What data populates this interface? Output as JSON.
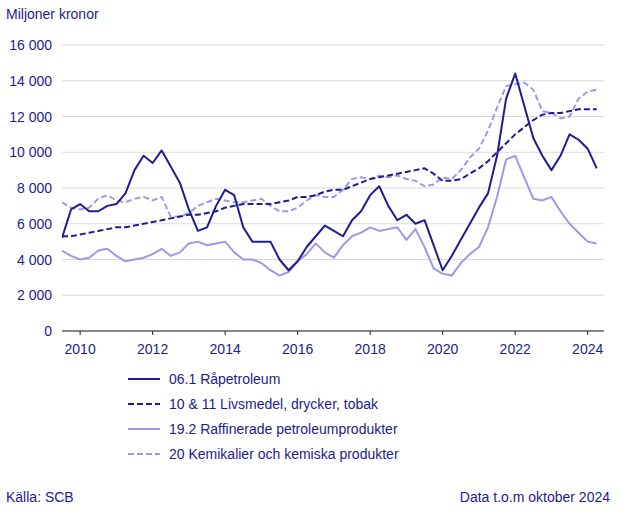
{
  "chart_data": {
    "type": "line",
    "y_label": "Miljoner kronor",
    "source": "Källa: SCB",
    "note": "Data t.o.m oktober 2024",
    "grid": true,
    "legend": "bottom",
    "xlim": [
      2010,
      2024.95
    ],
    "xticks": [
      {
        "value": 2010.5,
        "label": "2010"
      },
      {
        "value": 2012.5,
        "label": "2012"
      },
      {
        "value": 2014.5,
        "label": "2014"
      },
      {
        "value": 2016.5,
        "label": "2016"
      },
      {
        "value": 2018.5,
        "label": "2018"
      },
      {
        "value": 2020.5,
        "label": "2020"
      },
      {
        "value": 2022.5,
        "label": "2022"
      },
      {
        "value": 2024.5,
        "label": "2024"
      }
    ],
    "ylim": [
      0,
      16000
    ],
    "yticks": [
      0,
      {
        "value": 2000,
        "label": "2 000"
      },
      {
        "value": 4000,
        "label": "4 000"
      },
      {
        "value": 6000,
        "label": "6 000"
      },
      {
        "value": 8000,
        "label": "8 000"
      },
      {
        "value": 10000,
        "label": "10 000"
      },
      {
        "value": 12000,
        "label": "12 000"
      },
      {
        "value": 14000,
        "label": "14 000"
      },
      {
        "value": 16000,
        "label": "16 000"
      }
    ],
    "x": [
      2010,
      2010.25,
      2010.5,
      2010.75,
      2011,
      2011.25,
      2011.5,
      2011.75,
      2012,
      2012.25,
      2012.5,
      2012.75,
      2013,
      2013.25,
      2013.5,
      2013.75,
      2014,
      2014.25,
      2014.5,
      2014.75,
      2015,
      2015.25,
      2015.5,
      2015.75,
      2016,
      2016.25,
      2016.5,
      2016.75,
      2017,
      2017.25,
      2017.5,
      2017.75,
      2018,
      2018.25,
      2018.5,
      2018.75,
      2019,
      2019.25,
      2019.5,
      2019.75,
      2020,
      2020.25,
      2020.5,
      2020.75,
      2021,
      2021.25,
      2021.5,
      2021.75,
      2022,
      2022.25,
      2022.5,
      2022.75,
      2023,
      2023.25,
      2023.5,
      2023.75,
      2024,
      2024.25,
      2024.5,
      2024.75
    ],
    "series": [
      {
        "name": "06.1 Råpetroleum",
        "color": "#1f1b96",
        "line_style": "solid",
        "values": [
          5200,
          6800,
          7100,
          6700,
          6700,
          7000,
          7100,
          7700,
          9000,
          9800,
          9400,
          10100,
          9200,
          8300,
          6800,
          5600,
          5800,
          7000,
          7900,
          7600,
          5800,
          5000,
          5000,
          5000,
          4000,
          3400,
          3900,
          4700,
          5300,
          5900,
          5600,
          5300,
          6200,
          6700,
          7600,
          8100,
          7000,
          6200,
          6500,
          6000,
          6200,
          4800,
          3400,
          4200,
          5100,
          6000,
          6900,
          7700,
          9800,
          13000,
          14400,
          12600,
          10800,
          9800,
          9000,
          9800,
          11000,
          10700,
          10200,
          9100
        ]
      },
      {
        "name": "10 & 11 Livsmedel, drycker, tobak",
        "color": "#1f1b96",
        "line_style": "dashed",
        "values": [
          5300,
          5300,
          5400,
          5500,
          5600,
          5700,
          5800,
          5800,
          5900,
          6000,
          6100,
          6200,
          6300,
          6400,
          6500,
          6500,
          6600,
          6700,
          6900,
          7000,
          7100,
          7100,
          7100,
          7100,
          7200,
          7300,
          7500,
          7500,
          7600,
          7800,
          7900,
          7900,
          8100,
          8300,
          8500,
          8600,
          8700,
          8800,
          8900,
          9000,
          9100,
          8800,
          8400,
          8400,
          8500,
          8800,
          9100,
          9500,
          10000,
          10500,
          11000,
          11400,
          11800,
          12100,
          12200,
          12200,
          12300,
          12400,
          12400,
          12400
        ]
      },
      {
        "name": "19.2 Raffinerade petroleumprodukter",
        "color": "#9c9ae6",
        "line_style": "solid",
        "values": [
          4500,
          4200,
          4000,
          4100,
          4500,
          4600,
          4200,
          3900,
          4000,
          4100,
          4300,
          4600,
          4200,
          4400,
          4900,
          5000,
          4800,
          4900,
          5000,
          4400,
          4000,
          4000,
          3800,
          3400,
          3100,
          3300,
          3900,
          4300,
          4900,
          4400,
          4100,
          4800,
          5300,
          5500,
          5800,
          5600,
          5700,
          5800,
          5100,
          5700,
          4700,
          3500,
          3200,
          3100,
          3800,
          4300,
          4700,
          5800,
          7500,
          9600,
          9800,
          8600,
          7400,
          7300,
          7500,
          6700,
          6000,
          5500,
          5000,
          4900
        ]
      },
      {
        "name": "20 Kemikalier och kemiska produkter",
        "color": "#9c9ae6",
        "line_style": "dashed",
        "values": [
          7200,
          6900,
          6800,
          6900,
          7400,
          7600,
          7300,
          7200,
          7400,
          7500,
          7300,
          7500,
          6400,
          6400,
          6600,
          7000,
          7200,
          7400,
          7300,
          7200,
          7200,
          7300,
          7400,
          7000,
          6700,
          6700,
          6900,
          7300,
          7600,
          7500,
          7500,
          7900,
          8500,
          8600,
          8500,
          8700,
          8600,
          8700,
          8500,
          8400,
          8100,
          8200,
          8600,
          8500,
          9000,
          9700,
          10200,
          11200,
          12500,
          13700,
          13800,
          13900,
          13500,
          12300,
          12200,
          11900,
          12000,
          13000,
          13400,
          13500
        ]
      }
    ]
  }
}
